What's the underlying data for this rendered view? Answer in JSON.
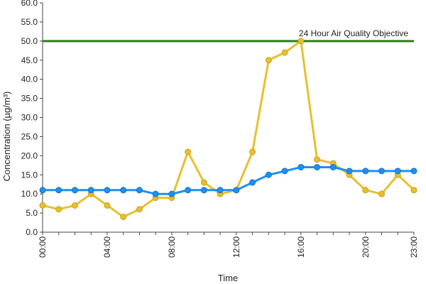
{
  "chart_data": {
    "type": "line",
    "xlabel": "Time",
    "ylabel": "Concentration (µg/m³)",
    "ylim": [
      0,
      60
    ],
    "y_ticks": [
      "0.0",
      "5.0",
      "10.0",
      "15.0",
      "20.0",
      "25.0",
      "30.0",
      "35.0",
      "40.0",
      "45.0",
      "50.0",
      "55.0",
      "60.0"
    ],
    "x": [
      "00:00",
      "01:00",
      "02:00",
      "03:00",
      "04:00",
      "05:00",
      "06:00",
      "07:00",
      "08:00",
      "09:00",
      "10:00",
      "11:00",
      "12:00",
      "13:00",
      "14:00",
      "15:00",
      "16:00",
      "17:00",
      "18:00",
      "19:00",
      "20:00",
      "21:00",
      "22:00",
      "23:00"
    ],
    "x_tick_labels": [
      "00:00",
      "04:00",
      "08:00",
      "12:00",
      "16:00",
      "20:00",
      "23:00"
    ],
    "series": [
      {
        "color": "#e8c02c",
        "values": [
          7,
          6,
          7,
          10,
          7,
          4,
          6,
          9,
          9,
          21,
          13,
          10,
          11,
          21,
          45,
          47,
          50,
          19,
          18,
          15,
          11,
          10,
          15,
          11
        ]
      },
      {
        "color": "#1e90ef",
        "values": [
          11,
          11,
          11,
          11,
          11,
          11,
          11,
          10,
          10,
          11,
          11,
          11,
          11,
          13,
          15,
          16,
          17,
          17,
          17,
          16,
          16,
          16,
          16,
          16
        ]
      }
    ],
    "reference_line": {
      "label": "24 Hour Air Quality Objective",
      "value": 50,
      "color": "#2e7d1f"
    },
    "grid": false,
    "legend": "none"
  }
}
